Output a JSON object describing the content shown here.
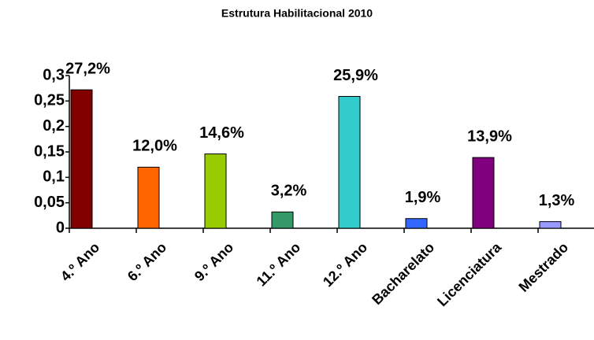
{
  "chart_data": {
    "type": "bar",
    "title": "Estrutura Habilitacional 2010",
    "categories": [
      "4.º Ano",
      "6.º Ano",
      "9.º Ano",
      "11.º Ano",
      "12.º Ano",
      "Bacharelato",
      "Licenciatura",
      "Mestrado"
    ],
    "values": [
      0.272,
      0.12,
      0.146,
      0.032,
      0.259,
      0.019,
      0.139,
      0.013
    ],
    "value_labels": [
      "27,2%",
      "12,0%",
      "14,6%",
      "3,2%",
      "25,9%",
      "1,9%",
      "13,9%",
      "1,3%"
    ],
    "colors": [
      "#800000",
      "#ff6600",
      "#99cc00",
      "#339966",
      "#33cccc",
      "#3366ff",
      "#800080",
      "#9999ff"
    ],
    "ylim": [
      0,
      0.3
    ],
    "yticks": [
      0,
      {
        "value": 0.05,
        "label": "0,05"
      },
      {
        "value": 0.1,
        "label": "0,1"
      },
      {
        "value": 0.15,
        "label": "0,15"
      },
      {
        "value": 0.2,
        "label": "0,2"
      },
      {
        "value": 0.25,
        "label": "0,25"
      },
      {
        "value": 0.3,
        "label": "0,3"
      }
    ],
    "grid": false
  }
}
